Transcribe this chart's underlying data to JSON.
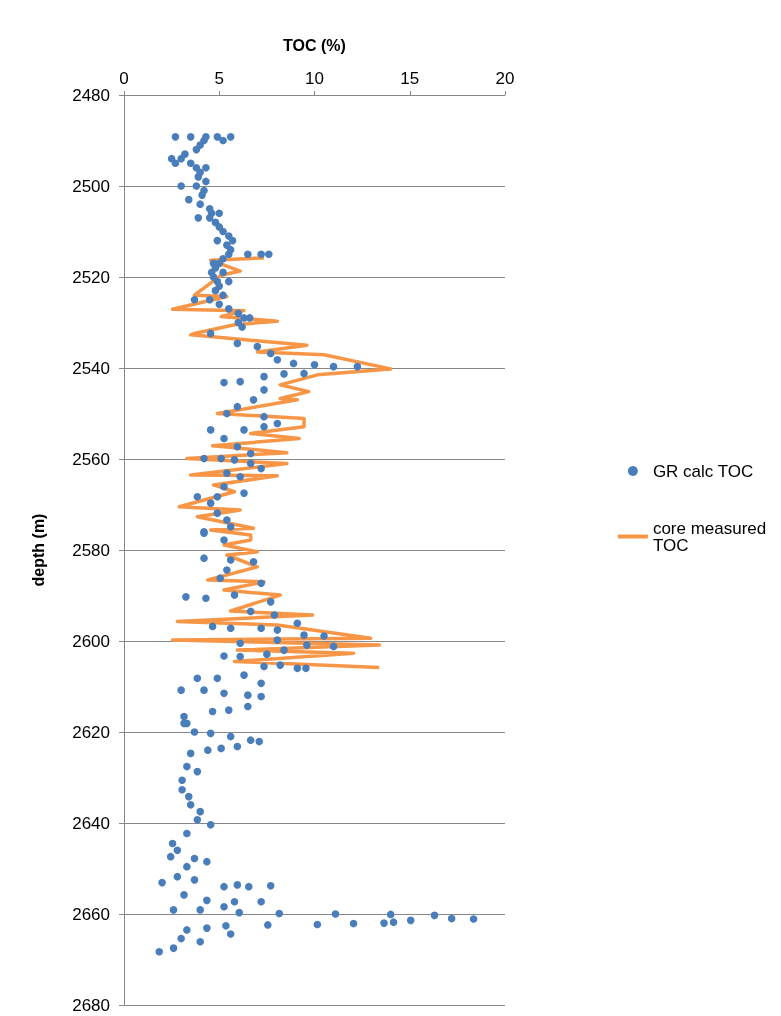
{
  "chart_data": {
    "type": "scatter",
    "xlabel": "TOC (%)",
    "ylabel": "depth (m)",
    "xlim": [
      0,
      20
    ],
    "xticks": [
      0,
      5,
      10,
      15,
      20
    ],
    "ylim": [
      2680,
      2480
    ],
    "yticks": [
      2480,
      2500,
      2520,
      2540,
      2560,
      2580,
      2600,
      2620,
      2640,
      2660,
      2680
    ],
    "grid": "y",
    "legend": "right",
    "orientation": "horizontal",
    "series": [
      {
        "name": "GR calc TOC",
        "marker": "circle",
        "color": "#4a7ebb",
        "values": [
          2.7,
          3.5,
          4.3,
          4.9,
          5.6,
          4.2,
          5.2,
          4.0,
          3.8,
          3.2,
          2.5,
          3.0,
          2.7,
          3.5,
          3.8,
          4.3,
          4.0,
          3.9,
          4.3,
          3.0,
          3.8,
          4.2,
          4.1,
          3.4,
          4.0,
          4.5,
          4.6,
          5.0,
          3.9,
          4.5,
          4.8,
          5.0,
          5.2,
          5.5,
          4.9,
          5.7,
          5.4,
          5.6,
          5.5,
          6.5,
          7.2,
          7.6,
          5.2,
          4.7,
          5.0,
          4.8,
          4.6,
          5.2,
          4.7,
          4.9,
          5.5,
          5.0,
          4.8,
          5.2,
          3.7,
          4.5,
          5.0,
          5.5,
          6.0,
          6.3,
          6.6,
          6.0,
          6.2,
          4.55,
          5.95,
          7.0,
          7.7,
          8.05,
          8.9,
          10.0,
          11.0,
          12.25,
          9.45,
          8.4,
          7.35,
          5.25,
          6.1,
          7.35,
          6.8,
          5.95,
          5.4,
          7.35,
          8.05,
          7.35,
          4.55,
          6.3,
          5.25,
          5.95,
          6.65,
          4.2,
          5.1,
          5.8,
          6.65,
          7.2,
          5.4,
          6.1,
          5.25,
          3.85,
          4.9,
          6.3,
          4.55,
          4.9,
          5.4,
          5.6,
          4.2,
          4.2,
          5.25,
          4.2,
          5.6,
          6.8,
          5.4,
          5.05,
          7.2,
          3.25,
          4.3,
          5.8,
          7.7,
          6.65,
          7.9,
          9.1,
          4.65,
          5.6,
          7.2,
          8.05,
          9.45,
          10.5,
          6.1,
          8.05,
          9.6,
          11.0,
          8.4,
          5.25,
          6.1,
          7.5,
          8.2,
          9.1,
          9.55,
          7.35,
          3.85,
          4.9,
          6.3,
          7.2,
          3.0,
          4.2,
          5.25,
          6.5,
          7.2,
          4.65,
          5.5,
          6.5,
          3.15,
          3.3,
          3.15,
          3.7,
          4.55,
          5.6,
          6.65,
          7.1,
          5.95,
          4.4,
          5.1,
          3.5,
          3.3,
          3.85,
          3.05,
          3.05,
          3.4,
          3.5,
          4.0,
          3.85,
          4.55,
          3.3,
          2.55,
          2.8,
          2.45,
          3.7,
          4.35,
          3.3,
          2.8,
          3.7,
          2.0,
          5.25,
          5.95,
          6.55,
          7.7,
          3.15,
          4.35,
          5.8,
          7.2,
          5.25,
          2.6,
          4.0,
          6.05,
          8.15,
          11.1,
          14.0,
          16.3,
          17.2,
          18.35,
          15.05,
          14.15,
          13.65,
          12.05,
          10.15,
          7.55,
          5.35,
          4.35,
          3.3,
          5.6,
          3.0,
          4.0,
          2.6,
          1.85
        ],
        "x": [
          2489.2,
          2489.2,
          2489.2,
          2489.2,
          2489.2,
          2490,
          2490,
          2491,
          2492,
          2493,
          2494,
          2494,
          2495,
          2495,
          2496,
          2496,
          2497,
          2498,
          2499,
          2500,
          2500,
          2501,
          2502,
          2503,
          2504,
          2505,
          2506,
          2506,
          2507,
          2507,
          2508,
          2509,
          2510,
          2511,
          2512,
          2512,
          2513,
          2514,
          2515,
          2515,
          2515,
          2515,
          2516,
          2517,
          2517,
          2518,
          2519,
          2519,
          2520,
          2521,
          2521,
          2522,
          2523,
          2524,
          2525,
          2525,
          2526,
          2527,
          2528,
          2529,
          2529,
          2530,
          2531,
          2532.4,
          2534.6,
          2535.3,
          2536.8,
          2538.2,
          2539,
          2539.3,
          2539.7,
          2539.7,
          2541.2,
          2541.3,
          2541.9,
          2543.2,
          2543,
          2544.8,
          2547,
          2548.5,
          2550,
          2550.7,
          2552.2,
          2552.9,
          2553.6,
          2553.6,
          2555.5,
          2557.3,
          2558.8,
          2559.9,
          2559.9,
          2560.2,
          2561,
          2562.1,
          2563.1,
          2563.9,
          2566.1,
          2568.3,
          2568.3,
          2567.5,
          2569.7,
          2571.9,
          2573.4,
          2574.9,
          2576,
          2576.3,
          2577.8,
          2581.8,
          2582.2,
          2582.6,
          2584.4,
          2586.2,
          2587.3,
          2590.3,
          2590.6,
          2589.9,
          2591.4,
          2593.5,
          2594.3,
          2596.1,
          2596.8,
          2597.2,
          2597.2,
          2597.6,
          2598.7,
          2598.9,
          2600.5,
          2599.8,
          2600.9,
          2601.2,
          2602,
          2603.3,
          2603.4,
          2602.9,
          2605.3,
          2606,
          2606,
          2605.6,
          2608.2,
          2608.2,
          2607.5,
          2609.3,
          2610.8,
          2610.8,
          2611.5,
          2611.9,
          2612.2,
          2615.5,
          2615.2,
          2614.4,
          2616.6,
          2618.1,
          2618.1,
          2620,
          2620.3,
          2621,
          2621.8,
          2622.1,
          2623.2,
          2624,
          2623.6,
          2624.7,
          2627.6,
          2628.7,
          2630.6,
          2632.7,
          2634.2,
          2636,
          2637.5,
          2639.3,
          2640.4,
          2642.3,
          2644.5,
          2646,
          2647.4,
          2647.8,
          2648.5,
          2649.6,
          2651.8,
          2652.5,
          2653.1,
          2654,
          2653.6,
          2654,
          2653.8,
          2655.8,
          2657,
          2657.3,
          2657.3,
          2658.4,
          2659.1,
          2659.1,
          2659.7,
          2659.9,
          2660,
          2660.1,
          2660.3,
          2661,
          2661.1,
          2661.4,
          2661.8,
          2662,
          2662.1,
          2662.3,
          2662.4,
          2662.6,
          2663.1,
          2663.5,
          2664.4,
          2665.4,
          2666.1,
          2667.5,
          2668.3
        ]
      },
      {
        "name": "core measured TOC",
        "type": "line",
        "marker": "none",
        "color": "#f79646",
        "values": [
          7.35,
          4.55,
          6.1,
          5.1,
          3.7,
          5.4,
          2.55,
          6.3,
          5.1,
          8.05,
          5.8,
          3.7,
          3.5,
          9.6,
          7.0,
          10.5,
          14.0,
          10.15,
          8.2,
          9.7,
          8.2,
          9.1,
          4.9,
          9.45,
          9.45,
          6.65,
          9.2,
          4.65,
          8.55,
          3.3,
          8.55,
          3.5,
          8.05,
          4.7,
          5.8,
          2.9,
          6.1,
          3.85,
          6.8,
          4.55,
          6.65,
          6.65,
          5.25,
          7.0,
          5.4,
          7.0,
          4.4,
          7.35,
          5.25,
          8.2,
          5.6,
          9.9,
          2.8,
          8.05,
          12.95,
          2.55,
          13.4,
          5.95,
          12.05,
          5.8,
          13.4
        ],
        "x": [
          2515.8,
          2516.3,
          2518.7,
          2519.6,
          2524,
          2524.3,
          2527.1,
          2527.4,
          2528.7,
          2529.7,
          2530.5,
          2532.4,
          2532.7,
          2535,
          2536.5,
          2537.1,
          2540.2,
          2541.5,
          2543.7,
          2545.2,
          2546.7,
          2547,
          2550,
          2551.1,
          2552.9,
          2554.4,
          2555.5,
          2557.1,
          2558.6,
          2559.9,
          2561,
          2563.5,
          2563.7,
          2565.7,
          2567.2,
          2570.5,
          2571.2,
          2572.7,
          2575.2,
          2575.6,
          2576.7,
          2577.8,
          2578.9,
          2580.4,
          2581.1,
          2583.7,
          2586.6,
          2587,
          2588.8,
          2589.9,
          2593.4,
          2594.3,
          2595.7,
          2596.5,
          2599.4,
          2599.8,
          2600.9,
          2602,
          2602.7,
          2604.5,
          2605.8
        ]
      }
    ]
  }
}
